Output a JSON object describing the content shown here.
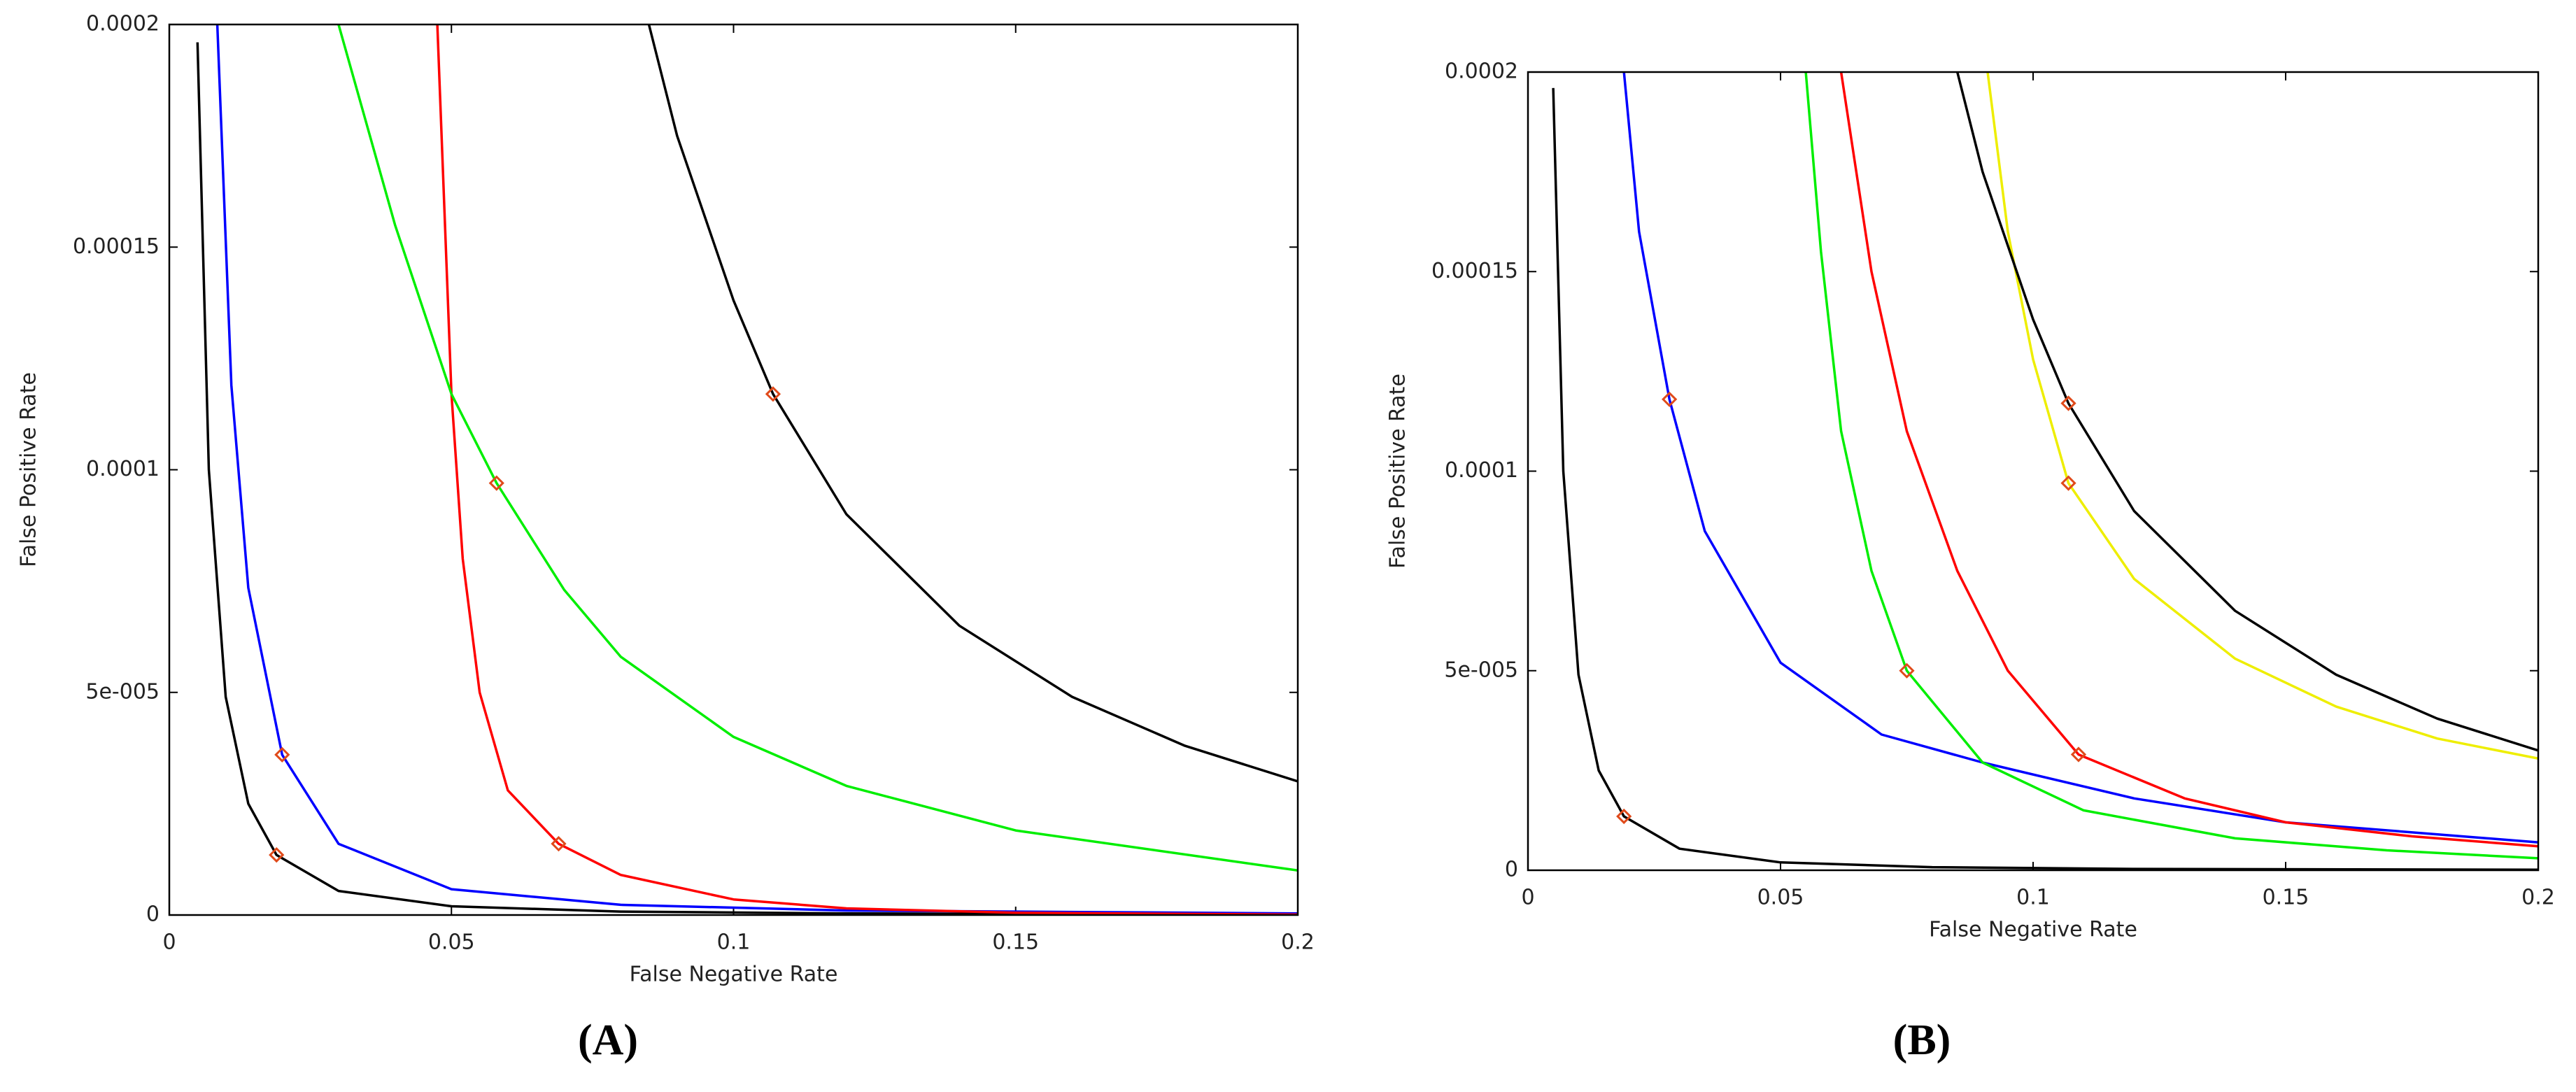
{
  "chart_data": [
    {
      "type": "line",
      "caption": "(A)",
      "xlabel": "False Negative Rate",
      "ylabel": "False Positive Rate",
      "xlim": [
        0,
        0.2
      ],
      "ylim": [
        0,
        0.0002
      ],
      "xticks": [
        0,
        0.05,
        0.1,
        0.15,
        0.2
      ],
      "yticks": [
        0,
        {
          "value": 5e-05,
          "label": "5e-005"
        },
        0.0001,
        0.00015,
        0.0002
      ],
      "series": [
        {
          "color": "#000000",
          "x": [
            0.005,
            0.007,
            0.01,
            0.014,
            0.019,
            0.03,
            0.05,
            0.08,
            0.12,
            0.2
          ],
          "values": [
            0.000196,
            0.0001,
            4.9e-05,
            2.5e-05,
            1.35e-05,
            5.4e-06,
            1.96e-06,
            7.7e-07,
            3.4e-07,
            1.2e-07
          ]
        },
        {
          "color": "#0000ff",
          "x": [
            0.0085,
            0.011,
            0.014,
            0.02,
            0.03,
            0.05,
            0.08,
            0.12,
            0.2
          ],
          "values": [
            0.0002,
            0.000119,
            7.35e-05,
            3.6e-05,
            1.6e-05,
            5.8e-06,
            2.3e-06,
            1e-06,
            3.6e-07
          ]
        },
        {
          "color": "#ff0000",
          "x": [
            0.0475,
            0.05,
            0.052,
            0.055,
            0.06,
            0.069,
            0.08,
            0.1,
            0.12,
            0.15,
            0.2
          ],
          "values": [
            0.0002,
            0.000117,
            8e-05,
            5e-05,
            2.8e-05,
            1.6e-05,
            9e-06,
            3.5e-06,
            1.5e-06,
            5e-07,
            1e-07
          ]
        },
        {
          "color": "#00ee00",
          "x": [
            0.03,
            0.04,
            0.05,
            0.058,
            0.07,
            0.08,
            0.1,
            0.12,
            0.15,
            0.2
          ],
          "values": [
            0.0002,
            0.000155,
            0.000117,
            9.7e-05,
            7.3e-05,
            5.8e-05,
            4e-05,
            2.9e-05,
            1.9e-05,
            1e-05
          ]
        },
        {
          "color": "#000000",
          "x": [
            0.085,
            0.09,
            0.1,
            0.107,
            0.12,
            0.14,
            0.16,
            0.18,
            0.2
          ],
          "values": [
            0.0002,
            0.000175,
            0.000138,
            0.000117,
            9e-05,
            6.5e-05,
            4.9e-05,
            3.8e-05,
            3e-05
          ]
        }
      ],
      "points": {
        "color": "#e04a1a",
        "x": [
          0.019,
          0.02,
          0.069,
          0.058,
          0.107
        ],
        "values": [
          1.35e-05,
          3.6e-05,
          1.6e-05,
          9.7e-05,
          0.000117
        ]
      }
    },
    {
      "type": "line",
      "caption": "(B)",
      "xlabel": "False Negative Rate",
      "ylabel": "False Positive Rate",
      "xlim": [
        0,
        0.2
      ],
      "ylim": [
        0,
        0.0002
      ],
      "xticks": [
        0,
        0.05,
        0.1,
        0.15,
        0.2
      ],
      "yticks": [
        0,
        {
          "value": 5e-05,
          "label": "5e-005"
        },
        0.0001,
        0.00015,
        0.0002
      ],
      "series": [
        {
          "color": "#000000",
          "x": [
            0.005,
            0.007,
            0.01,
            0.014,
            0.019,
            0.03,
            0.05,
            0.08,
            0.12,
            0.2
          ],
          "values": [
            0.000196,
            0.0001,
            4.9e-05,
            2.5e-05,
            1.35e-05,
            5.4e-06,
            1.96e-06,
            7.7e-07,
            3.4e-07,
            1.2e-07
          ]
        },
        {
          "color": "#0000ff",
          "x": [
            0.019,
            0.022,
            0.028,
            0.035,
            0.05,
            0.07,
            0.09,
            0.12,
            0.15,
            0.2
          ],
          "values": [
            0.0002,
            0.00016,
            0.000118,
            8.5e-05,
            5.2e-05,
            3.4e-05,
            2.7e-05,
            1.8e-05,
            1.2e-05,
            7e-06
          ]
        },
        {
          "color": "#00ee00",
          "x": [
            0.055,
            0.058,
            0.062,
            0.068,
            0.075,
            0.09,
            0.11,
            0.14,
            0.17,
            0.2
          ],
          "values": [
            0.0002,
            0.000155,
            0.00011,
            7.5e-05,
            5e-05,
            2.7e-05,
            1.5e-05,
            8e-06,
            5e-06,
            3e-06
          ]
        },
        {
          "color": "#ff0000",
          "x": [
            0.062,
            0.068,
            0.075,
            0.085,
            0.095,
            0.109,
            0.13,
            0.15,
            0.175,
            0.2
          ],
          "values": [
            0.0002,
            0.00015,
            0.00011,
            7.5e-05,
            5e-05,
            2.9e-05,
            1.8e-05,
            1.2e-05,
            8.5e-06,
            6e-06
          ]
        },
        {
          "color": "#eeee00",
          "x": [
            0.091,
            0.095,
            0.1,
            0.107,
            0.12,
            0.14,
            0.16,
            0.18,
            0.2
          ],
          "values": [
            0.0002,
            0.00016,
            0.000128,
            9.7e-05,
            7.3e-05,
            5.3e-05,
            4.1e-05,
            3.3e-05,
            2.8e-05
          ]
        },
        {
          "color": "#000000",
          "x": [
            0.085,
            0.09,
            0.1,
            0.107,
            0.12,
            0.14,
            0.16,
            0.18,
            0.2
          ],
          "values": [
            0.0002,
            0.000175,
            0.000138,
            0.000117,
            9e-05,
            6.5e-05,
            4.9e-05,
            3.8e-05,
            3e-05
          ]
        }
      ],
      "points": {
        "color": "#e04a1a",
        "x": [
          0.019,
          0.028,
          0.075,
          0.109,
          0.107,
          0.107
        ],
        "values": [
          1.35e-05,
          0.000118,
          5e-05,
          2.9e-05,
          9.7e-05,
          0.000117
        ]
      }
    }
  ]
}
